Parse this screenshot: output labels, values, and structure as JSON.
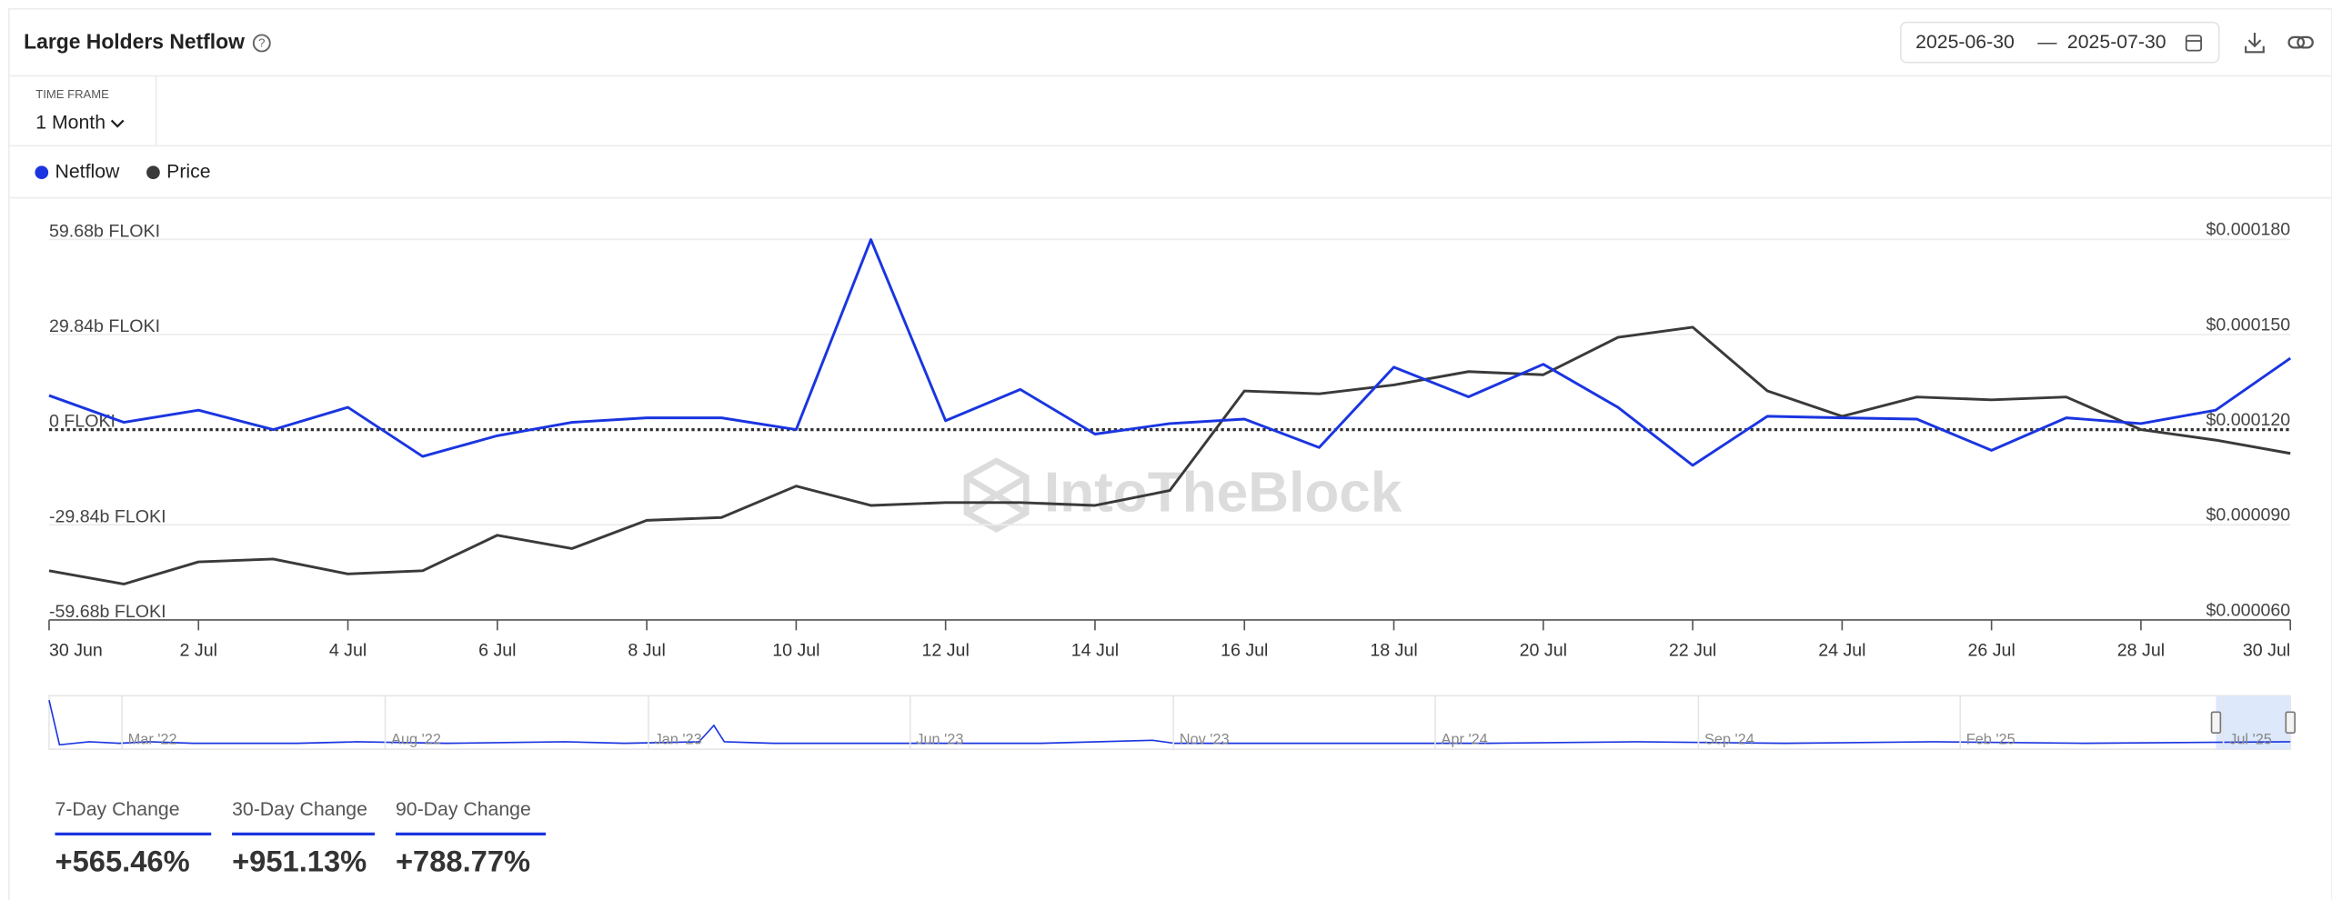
{
  "header": {
    "title": "Large Holders Netflow",
    "date_start": "2025-06-30",
    "date_separator": "—",
    "date_end": "2025-07-30"
  },
  "time_frame": {
    "label": "TIME FRAME",
    "value": "1 Month"
  },
  "watermark": "IntoTheBlock",
  "chart_data": {
    "type": "line",
    "categories": [
      "30 Jun",
      null,
      "2 Jul",
      null,
      "4 Jul",
      null,
      "6 Jul",
      null,
      "8 Jul",
      null,
      "10 Jul",
      null,
      "12 Jul",
      null,
      "14 Jul",
      null,
      "16 Jul",
      null,
      "18 Jul",
      null,
      "20 Jul",
      null,
      "22 Jul",
      null,
      "24 Jul",
      null,
      "26 Jul",
      null,
      "28 Jul",
      null,
      "30 Jul"
    ],
    "series": [
      {
        "name": "Netflow",
        "color": "#1a35e0",
        "values": [
          10.7,
          2.3,
          6.1,
          0,
          7.0,
          -8.4,
          -1.9,
          2.3,
          3.7,
          3.7,
          0,
          59.6,
          2.8,
          12.6,
          -1.4,
          1.9,
          3.3,
          -5.6,
          19.6,
          10.3,
          20.5,
          7.0,
          -11.2,
          4.2,
          3.7,
          3.3,
          -6.5,
          3.7,
          1.9,
          6.1,
          22.4
        ]
      },
      {
        "name": "Price",
        "color": "#3a3a3a",
        "axis": "y2",
        "values": [
          7.55e-05,
          7.13e-05,
          7.83e-05,
          7.92e-05,
          7.45e-05,
          7.55e-05,
          8.67e-05,
          8.25e-05,
          9.14e-05,
          9.23e-05,
          0.0001022,
          9.61e-05,
          9.7e-05,
          9.7e-05,
          9.61e-05,
          0.0001008,
          0.0001322,
          0.0001313,
          0.0001341,
          0.0001383,
          0.0001373,
          0.0001491,
          0.0001523,
          0.0001322,
          0.0001242,
          0.0001303,
          0.0001294,
          0.0001303,
          0.00012,
          0.0001167,
          0.0001125
        ]
      }
    ],
    "ylim": [
      -59.68,
      59.68
    ],
    "yticks": [
      {
        "value": -59.68,
        "label": "-59.68b FLOKI"
      },
      {
        "value": -29.84,
        "label": "-29.84b FLOKI"
      },
      {
        "value": 0,
        "label": "0 FLOKI"
      },
      {
        "value": 29.84,
        "label": "29.84b FLOKI"
      },
      {
        "value": 59.68,
        "label": "59.68b FLOKI"
      }
    ],
    "y2lim": [
      6e-05,
      0.00018
    ],
    "y2ticks": [
      {
        "value": 6e-05,
        "label": "$0.000060"
      },
      {
        "value": 9e-05,
        "label": "$0.000090"
      },
      {
        "value": 0.00012,
        "label": "$0.000120"
      },
      {
        "value": 0.00015,
        "label": "$0.000150"
      },
      {
        "value": 0.00018,
        "label": "$0.000180"
      }
    ],
    "grid": true,
    "legend": "top-left"
  },
  "navigator": {
    "labels": [
      "Mar '22",
      "Aug '22",
      "Jan '23",
      "Jun '23",
      "Nov '23",
      "Apr '24",
      "Sep '24",
      "Feb '25",
      "Jul '25"
    ]
  },
  "stats": [
    {
      "label": "7-Day Change",
      "value": "+565.46%"
    },
    {
      "label": "30-Day Change",
      "value": "+951.13%"
    },
    {
      "label": "90-Day Change",
      "value": "+788.77%"
    }
  ]
}
